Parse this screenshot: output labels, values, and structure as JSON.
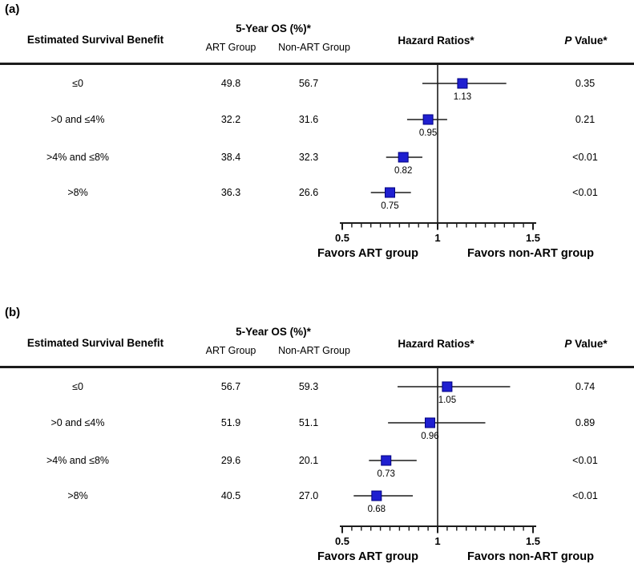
{
  "figure": {
    "background": "#ffffff",
    "marker_color": "#1f1fd0",
    "marker_border": "#000080",
    "line_color": "#1c1c1c"
  },
  "chart_data": [
    {
      "type": "forest",
      "panel_label": "(a)",
      "headers": {
        "benefit": "Estimated Survival Benefit",
        "os": "5-Year OS (%)*",
        "os_art": "ART Group",
        "os_non_art": "Non-ART Group",
        "hazard": "Hazard Ratios*",
        "p_italic": "P",
        "p_rest": " Value*"
      },
      "rows": [
        {
          "category": "≤0",
          "art_os": "49.8",
          "non_art_os": "56.7",
          "hr": 1.13,
          "hr_label": "1.13",
          "ci_low": 0.92,
          "ci_high": 1.36,
          "p": "0.35"
        },
        {
          "category": ">0 and ≤4%",
          "art_os": "32.2",
          "non_art_os": "31.6",
          "hr": 0.95,
          "hr_label": "0.95",
          "ci_low": 0.84,
          "ci_high": 1.05,
          "p": "0.21"
        },
        {
          "category": ">4% and ≤8%",
          "art_os": "38.4",
          "non_art_os": "32.3",
          "hr": 0.82,
          "hr_label": "0.82",
          "ci_low": 0.73,
          "ci_high": 0.92,
          "p": "<0.01"
        },
        {
          "category": ">8%",
          "art_os": "36.3",
          "non_art_os": "26.6",
          "hr": 0.75,
          "hr_label": "0.75",
          "ci_low": 0.65,
          "ci_high": 0.86,
          "p": "<0.01"
        }
      ],
      "axis": {
        "min": 0.5,
        "max": 1.5,
        "ticks": [
          0.5,
          1,
          1.5
        ],
        "tick_labels": [
          "0.5",
          "1",
          "1.5"
        ],
        "minor_step": 0.05,
        "ref_line": 1
      },
      "favors_left": "Favors ART group",
      "favors_right": "Favors non-ART group"
    },
    {
      "type": "forest",
      "panel_label": "(b)",
      "headers": {
        "benefit": "Estimated Survival Benefit",
        "os": "5-Year OS (%)*",
        "os_art": "ART Group",
        "os_non_art": "Non-ART Group",
        "hazard": "Hazard Ratios*",
        "p_italic": "P",
        "p_rest": " Value*"
      },
      "rows": [
        {
          "category": "≤0",
          "art_os": "56.7",
          "non_art_os": "59.3",
          "hr": 1.05,
          "hr_label": "1.05",
          "ci_low": 0.79,
          "ci_high": 1.38,
          "p": "0.74"
        },
        {
          "category": ">0 and ≤4%",
          "art_os": "51.9",
          "non_art_os": "51.1",
          "hr": 0.96,
          "hr_label": "0.96",
          "ci_low": 0.74,
          "ci_high": 1.25,
          "p": "0.89"
        },
        {
          "category": ">4% and ≤8%",
          "art_os": "29.6",
          "non_art_os": "20.1",
          "hr": 0.73,
          "hr_label": "0.73",
          "ci_low": 0.64,
          "ci_high": 0.89,
          "p": "<0.01"
        },
        {
          "category": ">8%",
          "art_os": "40.5",
          "non_art_os": "27.0",
          "hr": 0.68,
          "hr_label": "0.68",
          "ci_low": 0.56,
          "ci_high": 0.87,
          "p": "<0.01"
        }
      ],
      "axis": {
        "min": 0.5,
        "max": 1.5,
        "ticks": [
          0.5,
          1,
          1.5
        ],
        "tick_labels": [
          "0.5",
          "1",
          "1.5"
        ],
        "minor_step": 0.05,
        "ref_line": 1
      },
      "favors_left": "Favors ART group",
      "favors_right": "Favors non-ART group"
    }
  ]
}
